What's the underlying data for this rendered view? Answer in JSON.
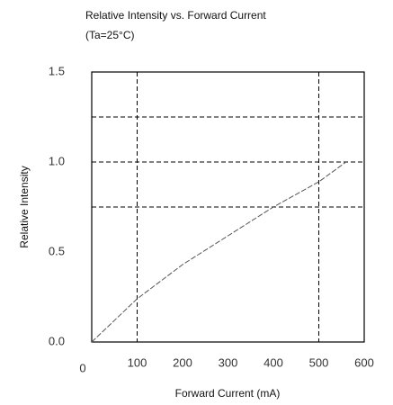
{
  "chart_data": {
    "type": "line",
    "title": "Relative Intensity vs. Forward Current",
    "subtitle": "(Ta=25°C)",
    "x_label": "Forward Current (mA)",
    "y_label": "Relative Intensity",
    "x": [
      0,
      100,
      200,
      300,
      400,
      500,
      560
    ],
    "series": [
      {
        "name": "Relative Intensity",
        "color": "#555555",
        "values": [
          0,
          0.24,
          0.43,
          0.59,
          0.75,
          0.89,
          1.0
        ]
      }
    ],
    "xlim": [
      0,
      600
    ],
    "xticks": [
      0,
      100,
      200,
      300,
      400,
      500,
      600
    ],
    "ylim": [
      0,
      1.5
    ],
    "yticks": [
      {
        "value": 0,
        "label": "0.0"
      },
      0.5,
      {
        "value": 1,
        "label": "1.0"
      },
      1.5
    ],
    "x_grid": [
      100,
      500
    ],
    "y_grid": [
      0.75,
      1.0,
      1.25
    ],
    "grid": true
  }
}
